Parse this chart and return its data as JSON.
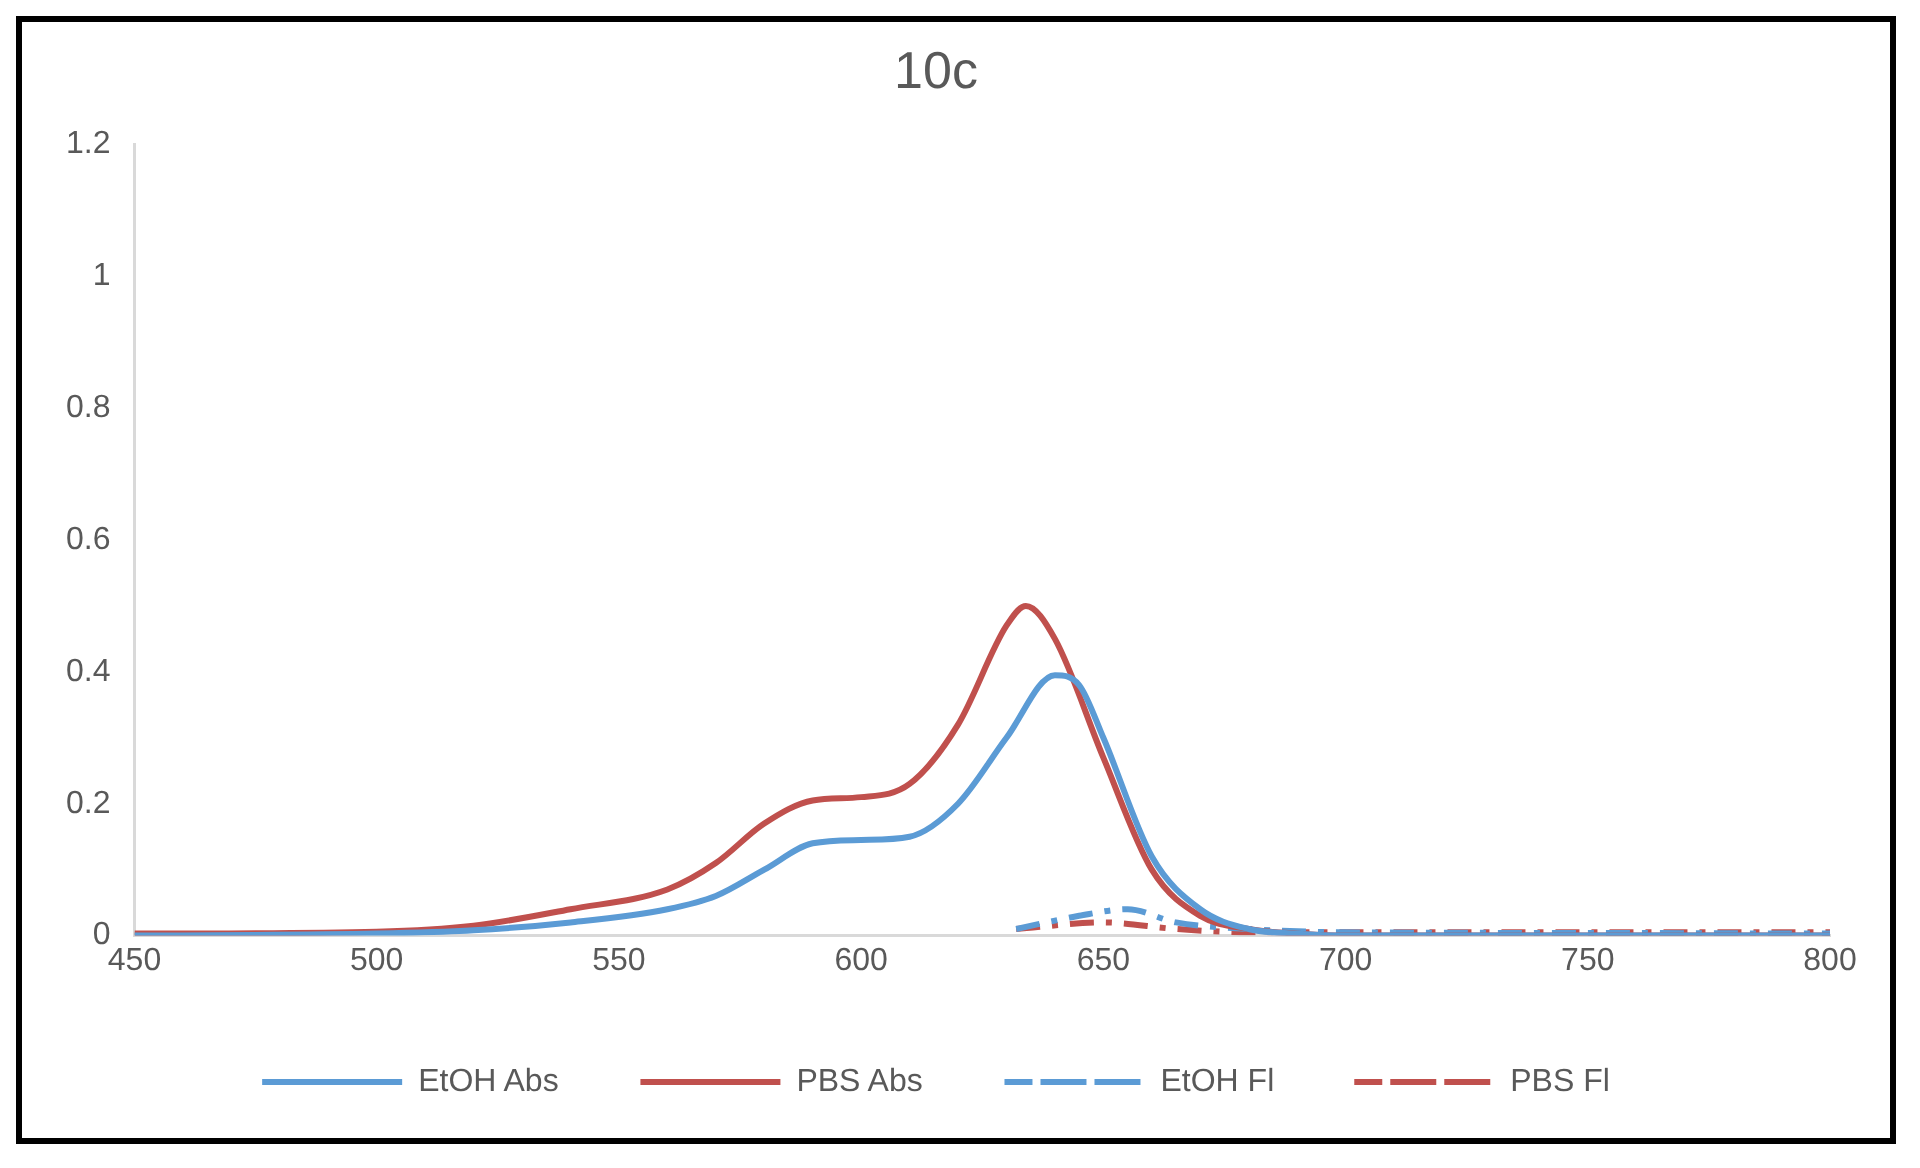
{
  "chart_data": {
    "type": "line",
    "title": "10c",
    "xlim": [
      450,
      800
    ],
    "xticks": [
      450,
      500,
      550,
      600,
      650,
      700,
      750,
      800
    ],
    "ylim": [
      0,
      1.2
    ],
    "yticks": [
      0,
      0.2,
      0.4,
      0.6,
      0.8,
      1,
      1.2
    ],
    "grid": false,
    "legend": "bottom",
    "marker": "none",
    "series": [
      {
        "name": "EtOH Abs",
        "color": "#5b9bd5",
        "line_style": "solid",
        "x": [
          450,
          500,
          520,
          540,
          560,
          570,
          580,
          590,
          600,
          610,
          620,
          630,
          640,
          645,
          650,
          660,
          670,
          680,
          690,
          700,
          800
        ],
        "values": [
          0,
          0.003,
          0.008,
          0.02,
          0.04,
          0.06,
          0.1,
          0.14,
          0.145,
          0.15,
          0.2,
          0.3,
          0.395,
          0.38,
          0.3,
          0.12,
          0.04,
          0.01,
          0.003,
          0,
          0
        ]
      },
      {
        "name": "PBS Abs",
        "color": "#c0504d",
        "line_style": "solid",
        "x": [
          450,
          500,
          520,
          540,
          560,
          570,
          580,
          590,
          600,
          610,
          620,
          630,
          634,
          640,
          650,
          660,
          670,
          680,
          690,
          700,
          800
        ],
        "values": [
          0.003,
          0.006,
          0.015,
          0.04,
          0.07,
          0.11,
          0.17,
          0.205,
          0.21,
          0.23,
          0.32,
          0.47,
          0.5,
          0.45,
          0.27,
          0.1,
          0.03,
          0.01,
          0.003,
          0,
          0
        ]
      },
      {
        "name": "EtOH Fl",
        "color": "#5b9bd5",
        "line_style": "dashed",
        "x": [
          632,
          645,
          655,
          665,
          680,
          700,
          750,
          800
        ],
        "values": [
          0.01,
          0.03,
          0.04,
          0.02,
          0.01,
          0.005,
          0.004,
          0.003
        ]
      },
      {
        "name": "PBS Fl",
        "color": "#c0504d",
        "line_style": "dashed",
        "x": [
          632,
          650,
          665,
          680,
          700,
          750,
          800
        ],
        "values": [
          0.01,
          0.02,
          0.01,
          0.005,
          0.005,
          0.005,
          0.005
        ]
      }
    ]
  }
}
